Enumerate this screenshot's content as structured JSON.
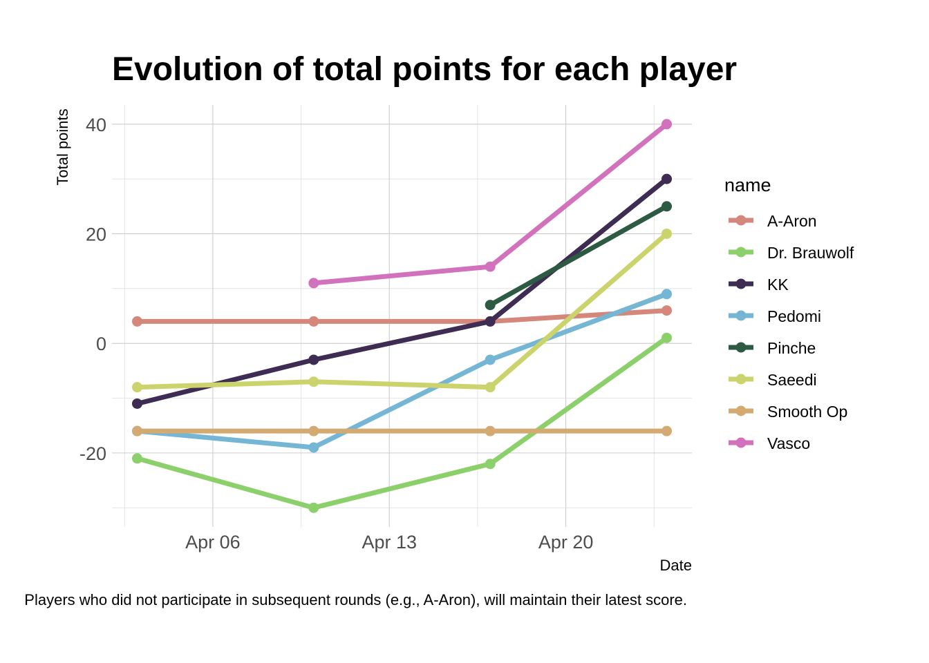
{
  "chart_data": {
    "type": "line",
    "title": "Evolution of total points for each player",
    "xlabel": "Date",
    "ylabel": "Total points",
    "caption": "Players who did not participate in subsequent rounds (e.g., A-Aron), will maintain their latest score.",
    "legend_title": "name",
    "legend_position": "right",
    "grid": true,
    "x_type": "date",
    "xlim": [
      "2024-04-02",
      "2024-04-25"
    ],
    "ylim": [
      -33.5,
      43.5
    ],
    "x_ticks": [
      {
        "value": "2024-04-06",
        "label": "Apr 06"
      },
      {
        "value": "2024-04-13",
        "label": "Apr 13"
      },
      {
        "value": "2024-04-20",
        "label": "Apr 20"
      }
    ],
    "y_ticks": [
      {
        "value": -20,
        "label": "-20"
      },
      {
        "value": 0,
        "label": "0"
      },
      {
        "value": 20,
        "label": "20"
      },
      {
        "value": 40,
        "label": "40"
      }
    ],
    "series": [
      {
        "name": "A-Aron",
        "color": "#d4877a",
        "points": [
          {
            "x": "2024-04-03",
            "y": 4
          },
          {
            "x": "2024-04-10",
            "y": 4
          },
          {
            "x": "2024-04-17",
            "y": 4
          },
          {
            "x": "2024-04-24",
            "y": 6
          }
        ]
      },
      {
        "name": "Dr. Brauwolf",
        "color": "#8cd06c",
        "points": [
          {
            "x": "2024-04-03",
            "y": -21
          },
          {
            "x": "2024-04-10",
            "y": -30
          },
          {
            "x": "2024-04-17",
            "y": -22
          },
          {
            "x": "2024-04-24",
            "y": 1
          }
        ]
      },
      {
        "name": "KK",
        "color": "#3e2c52",
        "points": [
          {
            "x": "2024-04-03",
            "y": -11
          },
          {
            "x": "2024-04-10",
            "y": -3
          },
          {
            "x": "2024-04-17",
            "y": 4
          },
          {
            "x": "2024-04-24",
            "y": 30
          }
        ]
      },
      {
        "name": "Pedomi",
        "color": "#74b6d4",
        "points": [
          {
            "x": "2024-04-03",
            "y": -16
          },
          {
            "x": "2024-04-10",
            "y": -19
          },
          {
            "x": "2024-04-17",
            "y": -3
          },
          {
            "x": "2024-04-24",
            "y": 9
          }
        ]
      },
      {
        "name": "Pinche",
        "color": "#2d5a42",
        "points": [
          {
            "x": "2024-04-17",
            "y": 7
          },
          {
            "x": "2024-04-24",
            "y": 25
          }
        ]
      },
      {
        "name": "Saeedi",
        "color": "#cbd46c",
        "points": [
          {
            "x": "2024-04-03",
            "y": -8
          },
          {
            "x": "2024-04-10",
            "y": -7
          },
          {
            "x": "2024-04-17",
            "y": -8
          },
          {
            "x": "2024-04-24",
            "y": 20
          }
        ]
      },
      {
        "name": "Smooth Op",
        "color": "#d3aa72",
        "points": [
          {
            "x": "2024-04-03",
            "y": -16
          },
          {
            "x": "2024-04-10",
            "y": -16
          },
          {
            "x": "2024-04-17",
            "y": -16
          },
          {
            "x": "2024-04-24",
            "y": -16
          }
        ]
      },
      {
        "name": "Vasco",
        "color": "#d272bc",
        "points": [
          {
            "x": "2024-04-10",
            "y": 11
          },
          {
            "x": "2024-04-17",
            "y": 14
          },
          {
            "x": "2024-04-24",
            "y": 40
          }
        ]
      }
    ]
  }
}
